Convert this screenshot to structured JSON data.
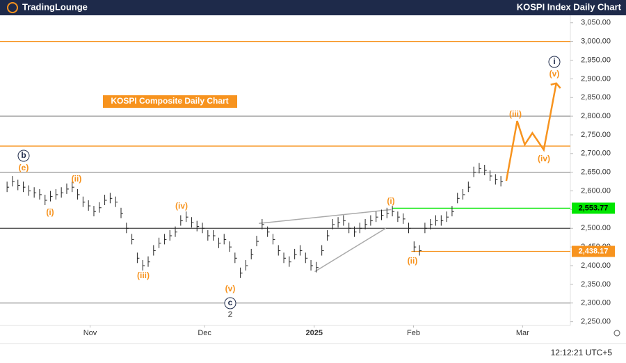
{
  "header": {
    "logo": "TradingLounge",
    "title": "KOSPI Index Daily Chart"
  },
  "footer": {
    "time": "12:12:21 UTC+5"
  },
  "chart_data": {
    "type": "ohlc",
    "subtitle": "KOSPI Composite Daily Chart",
    "color": "#222222",
    "values": [
      2610,
      2625,
      2615,
      2610,
      2600,
      2595,
      2590,
      2575,
      2585,
      2590,
      2595,
      2605,
      2610,
      2590,
      2570,
      2560,
      2545,
      2555,
      2575,
      2580,
      2570,
      2540,
      2500,
      2470,
      2420,
      2400,
      2410,
      2440,
      2460,
      2470,
      2480,
      2490,
      2520,
      2530,
      2515,
      2505,
      2500,
      2480,
      2480,
      2460,
      2470,
      2450,
      2420,
      2380,
      2400,
      2430,
      2465,
      2510,
      2490,
      2470,
      2440,
      2420,
      2410,
      2430,
      2440,
      2420,
      2400,
      2395,
      2440,
      2480,
      2510,
      2515,
      2520,
      2500,
      2490,
      2500,
      2510,
      2520,
      2530,
      2535,
      2540,
      2545,
      2530,
      2525,
      2500,
      2450,
      2440,
      2500,
      2510,
      2520,
      2520,
      2530,
      2545,
      2580,
      2590,
      2610,
      2650,
      2660,
      2655,
      2640,
      2630,
      2625
    ],
    "xlim": [
      -1.3,
      103.8
    ],
    "ylim": [
      2240,
      3070
    ],
    "xticks": [
      {
        "value": 15.3,
        "label": "Nov"
      },
      {
        "value": 36.4,
        "label": "Dec"
      },
      {
        "value": 56.6,
        "label": "2025"
      },
      {
        "value": 74.9,
        "label": "Feb"
      },
      {
        "value": 95,
        "label": "Mar"
      }
    ],
    "yticks": [
      {
        "value": 3050,
        "label": "3,050.00"
      },
      {
        "value": 3000,
        "label": "3,000.00"
      },
      {
        "value": 2950,
        "label": "2,950.00"
      },
      {
        "value": 2900,
        "label": "2,900.00"
      },
      {
        "value": 2850,
        "label": "2,850.00"
      },
      {
        "value": 2800,
        "label": "2,800.00"
      },
      {
        "value": 2750,
        "label": "2,750.00"
      },
      {
        "value": 2700,
        "label": "2,700.00"
      },
      {
        "value": 2650,
        "label": "2,650.00"
      },
      {
        "value": 2600,
        "label": "2,600.00"
      },
      {
        "value": 2550,
        "label": "2,550.00"
      },
      {
        "value": 2500,
        "label": "2,500.00"
      },
      {
        "value": 2450,
        "label": "2,450.00"
      },
      {
        "value": 2400,
        "label": "2,400.00"
      },
      {
        "value": 2350,
        "label": "2,350.00"
      },
      {
        "value": 2300,
        "label": "2,300.00"
      },
      {
        "value": 2250,
        "label": "2,250.00"
      }
    ],
    "levels": [
      {
        "value": 3000,
        "color": "#f7931e"
      },
      {
        "value": 2800,
        "color": "#9e9e9e"
      },
      {
        "value": 2720,
        "color": "#f7931e"
      },
      {
        "value": 2650,
        "color": "#9e9e9e"
      },
      {
        "value": 2553.77,
        "color": "#00e600",
        "label": "2,553.77"
      },
      {
        "value": 2500,
        "color": "#555555"
      },
      {
        "value": 2438.17,
        "color": "#f7931e",
        "label": "2,438.17"
      },
      {
        "value": 2300,
        "color": "#9e9e9e"
      }
    ],
    "trendlines": [
      {
        "color": "#aaaaaa",
        "x": [
          56.7,
          69.8
        ],
        "values": [
          2384,
          2500
        ]
      },
      {
        "color": "#aaaaaa",
        "x": [
          46.4,
          70.8
        ],
        "values": [
          2513,
          2550
        ]
      }
    ],
    "projection": {
      "color": "#f7931e",
      "x": [
        92,
        94,
        95.4,
        96.8,
        98.9,
        101.2
      ],
      "values": [
        2627,
        2787,
        2724,
        2755,
        2710,
        2888
      ]
    },
    "annotations": [
      {
        "text": "(i)",
        "color": "#f7931e"
      },
      {
        "text": "(ii)",
        "color": "#f7931e"
      },
      {
        "text": "(iii)",
        "color": "#f7931e"
      },
      {
        "text": "(iv)",
        "color": "#f7931e"
      },
      {
        "text": "(v)",
        "color": "#f7931e"
      },
      {
        "text": "c",
        "color": "#1e2a4a",
        "circled": true
      },
      {
        "text": "2",
        "color": "#777777"
      },
      {
        "text": "b",
        "color": "#1e2a4a",
        "circled": true
      },
      {
        "text": "(e)",
        "color": "#f7931e"
      },
      {
        "text": "(i)",
        "color": "#f7931e"
      },
      {
        "text": "(ii)",
        "color": "#f7931e"
      },
      {
        "text": "(iii)",
        "color": "#f7931e"
      },
      {
        "text": "(iv)",
        "color": "#f7931e"
      },
      {
        "text": "(v)",
        "color": "#f7931e"
      },
      {
        "text": "i",
        "color": "#1e2a4a",
        "circled": true
      }
    ]
  }
}
